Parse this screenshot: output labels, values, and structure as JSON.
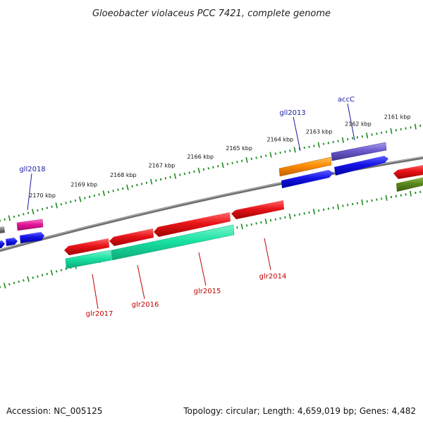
{
  "title": "Gloeobacter violaceus PCC 7421, complete genome",
  "footer": {
    "accession": "Accession: NC_005125",
    "summary": "Topology: circular; Length: 4,659,019 bp; Genes: 4,482"
  },
  "ruler_labels": [
    "2161 kbp",
    "2162 kbp",
    "2163 kbp",
    "2164 kbp",
    "2165 kbp",
    "2166 kbp",
    "2167 kbp",
    "2168 kbp",
    "2169 kbp",
    "2170 kbp"
  ],
  "forward_gene_labels": [
    "accC",
    "gll2013",
    "gll2018"
  ],
  "reverse_gene_labels": [
    "glr2014",
    "glr2015",
    "glr2016",
    "glr2017"
  ],
  "colors": {
    "backbone": "#777777",
    "tick": "#1e8a1e",
    "red": "#e8141a",
    "blue": "#1414e6",
    "teal": "#19e2a2",
    "orange": "#ff8c00",
    "purple": "#6a5acd",
    "magenta": "#e6169b",
    "olive": "#5a8a1e"
  }
}
